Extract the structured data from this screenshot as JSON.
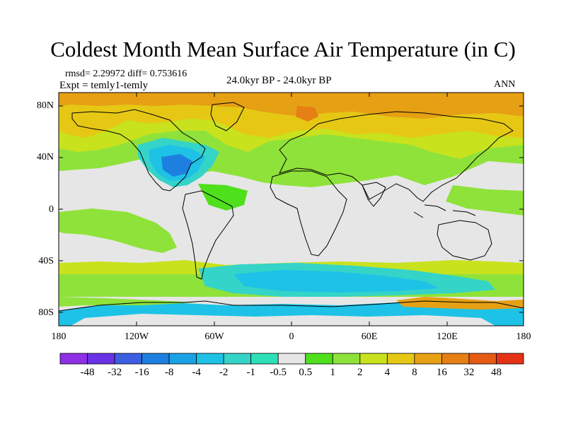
{
  "title": "Coldest Month Mean Surface Air Temperature (in C)",
  "stats": "rmsd= 2.29972 diff= 0.753616",
  "experiment": "Expt = temly1-temly",
  "period": "24.0kyr BP - 24.0kyr BP",
  "season": "ANN",
  "axes": {
    "lat_labels": [
      "80N",
      "40N",
      "0",
      "40S",
      "80S"
    ],
    "lon_labels": [
      "180",
      "120W",
      "60W",
      "0",
      "60E",
      "120E",
      "180"
    ]
  },
  "colorbar": {
    "labels": [
      "-48",
      "-32",
      "-16",
      "-8",
      "-4",
      "-2",
      "-1",
      "-0.5",
      "0.5",
      "1",
      "2",
      "4",
      "8",
      "16",
      "32",
      "48"
    ],
    "colors": [
      "#8f2fe6",
      "#6a32e6",
      "#3b5fe0",
      "#1d80e0",
      "#1aa2e6",
      "#1ec2e6",
      "#35d4c8",
      "#2ee0b8",
      "#e6e6e6",
      "#4fe01c",
      "#8fe23a",
      "#c8e21e",
      "#e6c814",
      "#e6a014",
      "#e67f14",
      "#e65a14",
      "#e63214"
    ]
  },
  "colors": {
    "missing": "#e6e6e6",
    "coast": "#000000"
  }
}
